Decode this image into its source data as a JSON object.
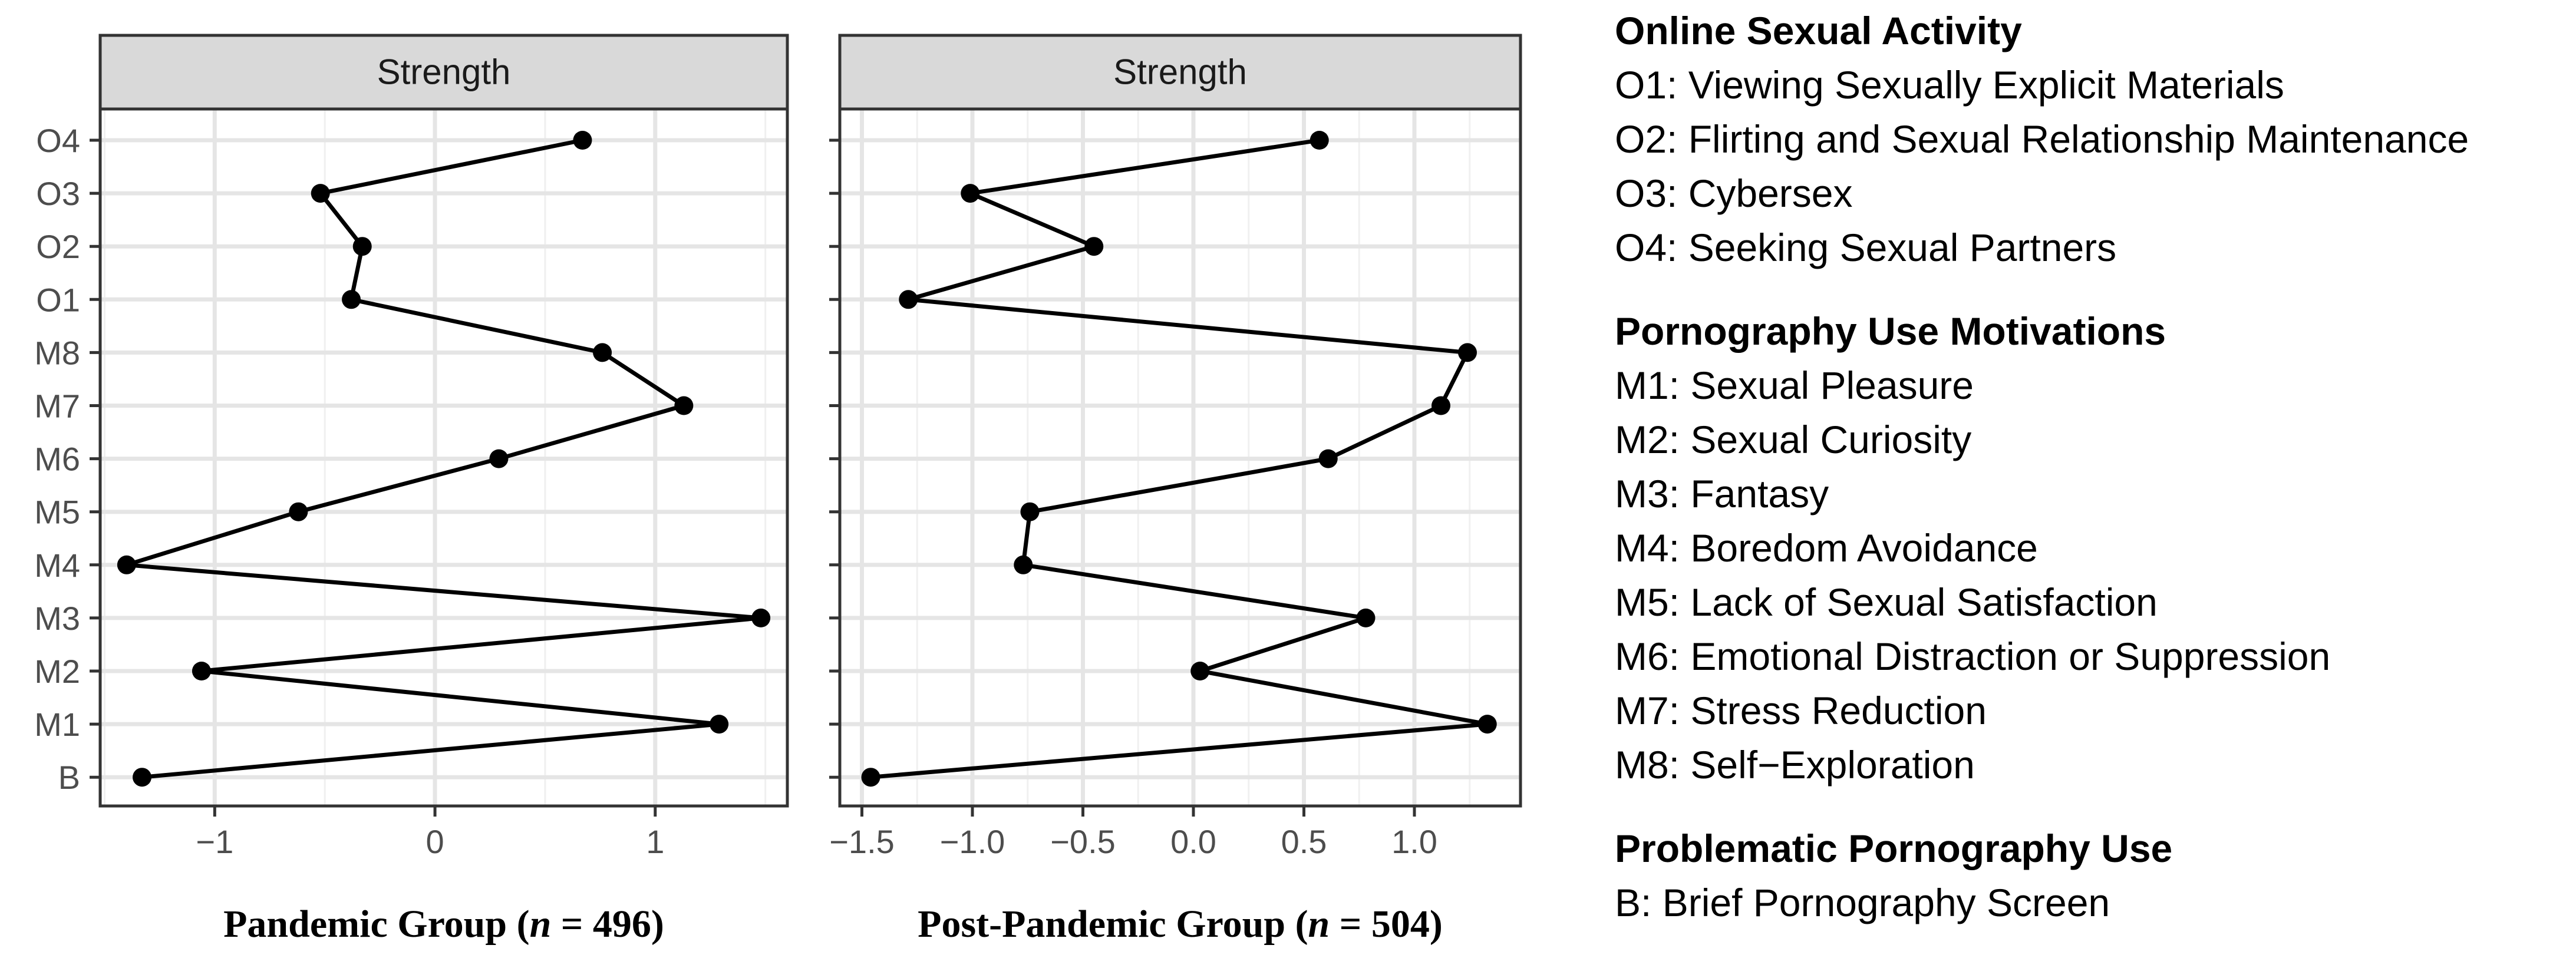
{
  "chart_data": [
    {
      "type": "line",
      "orientation": "horizontal",
      "strip_label": "Strength",
      "caption": {
        "prefix": "Pandemic Group (",
        "n_symbol": "n",
        "suffix": " = 496)"
      },
      "categories": [
        "B",
        "M1",
        "M2",
        "M3",
        "M4",
        "M5",
        "M6",
        "M7",
        "M8",
        "O1",
        "O2",
        "O3",
        "O4"
      ],
      "values": [
        -1.33,
        1.29,
        -1.06,
        1.48,
        -1.4,
        -0.62,
        0.29,
        1.13,
        0.76,
        -0.38,
        -0.33,
        -0.52,
        0.67
      ],
      "xlim": [
        -1.52,
        1.6
      ],
      "xticks": [
        -1,
        0,
        1
      ],
      "xtick_labels": [
        "−1",
        "0",
        "1"
      ],
      "minor_xticks": [
        -1.5,
        -0.5,
        0.5,
        1.5
      ],
      "grid": true
    },
    {
      "type": "line",
      "orientation": "horizontal",
      "strip_label": "Strength",
      "caption": {
        "prefix": "Post-Pandemic Group (",
        "n_symbol": "n",
        "suffix": " = 504)"
      },
      "categories": [
        "B",
        "M1",
        "M2",
        "M3",
        "M4",
        "M5",
        "M6",
        "M7",
        "M8",
        "O1",
        "O2",
        "O3",
        "O4"
      ],
      "values": [
        -1.46,
        1.33,
        0.03,
        0.78,
        -0.77,
        -0.74,
        0.61,
        1.12,
        1.24,
        -1.29,
        -0.45,
        -1.01,
        0.57
      ],
      "xlim": [
        -1.6,
        1.48
      ],
      "xticks": [
        -1.5,
        -1.0,
        -0.5,
        0.0,
        0.5,
        1.0
      ],
      "xtick_labels": [
        "−1.5",
        "−1.0",
        "−0.5",
        "0.0",
        "0.5",
        "1.0"
      ],
      "minor_xticks": [
        -1.25,
        -0.75,
        -0.25,
        0.25,
        0.75,
        1.25
      ],
      "grid": true
    }
  ],
  "legend": {
    "groups": [
      {
        "heading": "Online Sexual Activity",
        "items": [
          "O1: Viewing Sexually Explicit Materials",
          "O2: Flirting and Sexual Relationship Maintenance",
          "O3: Cybersex",
          "O4: Seeking Sexual Partners"
        ]
      },
      {
        "heading": "Pornography Use Motivations",
        "items": [
          "M1: Sexual Pleasure",
          "M2: Sexual Curiosity",
          "M3: Fantasy",
          "M4: Boredom Avoidance",
          "M5: Lack of Sexual Satisfaction",
          "M6: Emotional Distraction or Suppression",
          "M7: Stress Reduction",
          "M8: Self−Exploration"
        ]
      },
      {
        "heading": "Problematic Pornography Use",
        "items": [
          "B: Brief Pornography Screen"
        ]
      }
    ]
  }
}
